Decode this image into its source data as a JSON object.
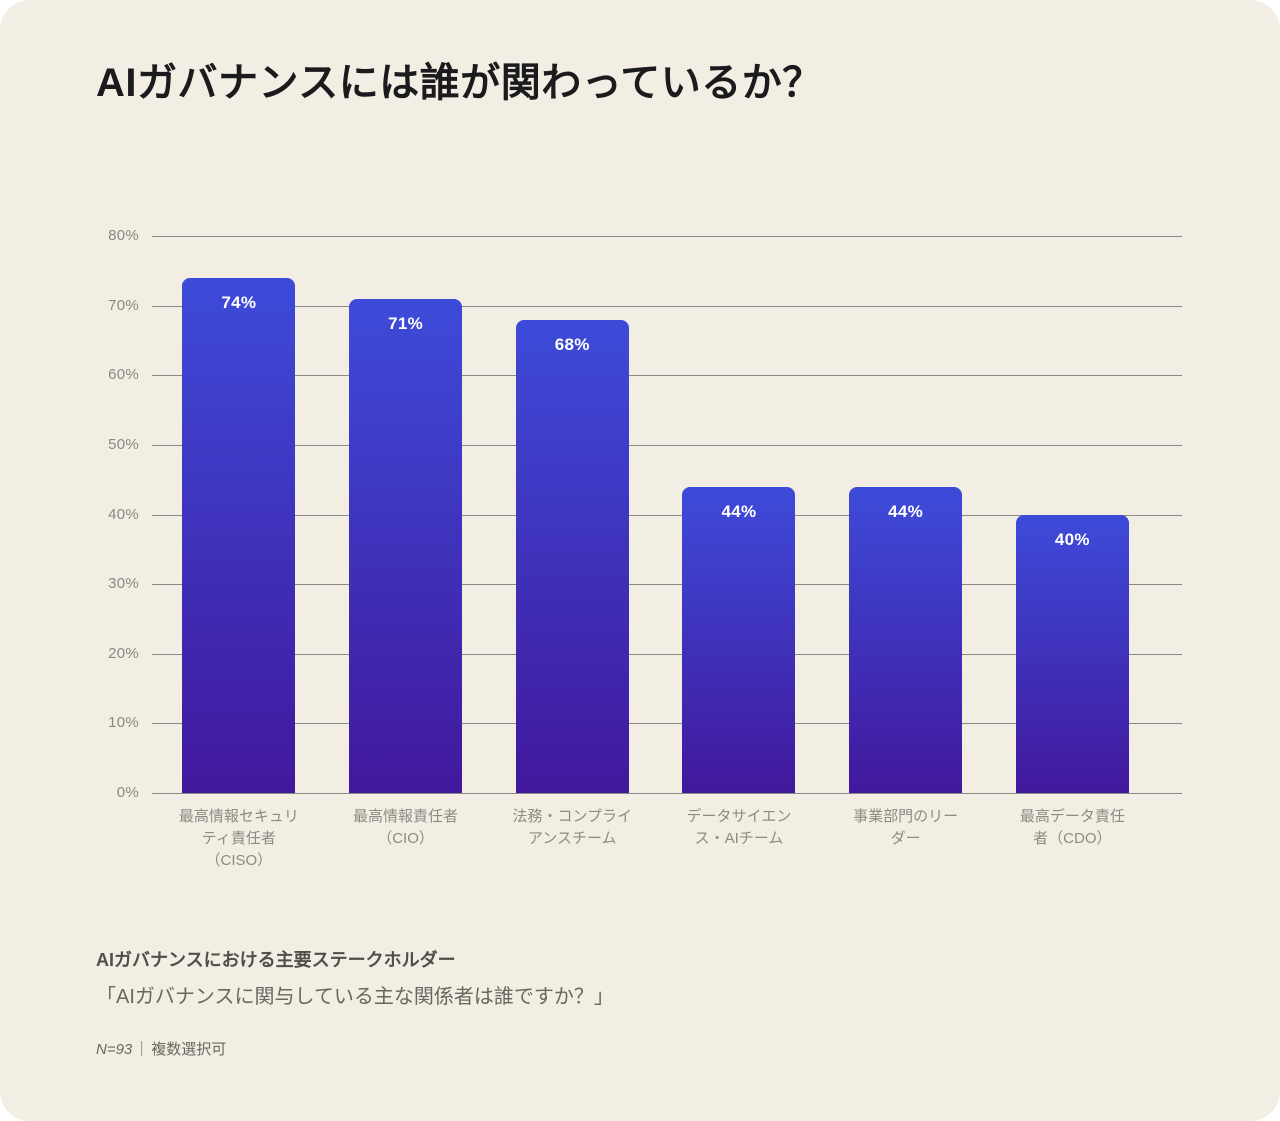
{
  "title": "AIガバナンスには誰が関わっているか？",
  "chart_data": {
    "type": "bar",
    "title": "AIガバナンスには誰が関わっているか？",
    "categories": [
      "最高情報セキュリティ責任者（CISO）",
      "最高情報責任者（CIO）",
      "法務・コンプライアンスチーム",
      "データサイエンス・AIチーム",
      "事業部門のリーダー",
      "最高データ責任者（CDO）"
    ],
    "categories_wrapped": [
      [
        "最高情報セキュリ",
        "ティ責任者",
        "（CISO）"
      ],
      [
        "最高情報責任者",
        "（CIO）"
      ],
      [
        "法務・コンプライ",
        "アンスチーム"
      ],
      [
        "データサイエン",
        "ス・AIチーム"
      ],
      [
        "事業部門のリー",
        "ダー"
      ],
      [
        "最高データ責任",
        "者（CDO）"
      ]
    ],
    "values": [
      74,
      71,
      68,
      44,
      44,
      40
    ],
    "value_labels": [
      "74%",
      "71%",
      "68%",
      "44%",
      "44%",
      "40%"
    ],
    "xlabel": "",
    "ylabel": "",
    "ylim": [
      0,
      80
    ],
    "yticks": [
      0,
      10,
      20,
      30,
      40,
      50,
      60,
      70,
      80
    ],
    "ytick_suffix": "%",
    "grid": true,
    "legend_position": "none"
  },
  "footer": {
    "caption": "AIガバナンスにおける主要ステークホルダー",
    "question": "「AIガバナンスに関与している主な関係者は誰ですか？」",
    "sample": "N=93",
    "separator": "｜",
    "note": "複数選択可"
  },
  "colors": {
    "card_background": "#f2eee3",
    "page_background": "#ffffff",
    "bar_gradient_top": "#3d4bd9",
    "bar_gradient_bottom": "#41189c",
    "gridline": "#8c8a86",
    "axis_text": "#8b8880",
    "title_text": "#1b1a1c",
    "value_label_text": "#ffffff",
    "caption_text": "#514e49",
    "note_text": "#6b675f"
  }
}
